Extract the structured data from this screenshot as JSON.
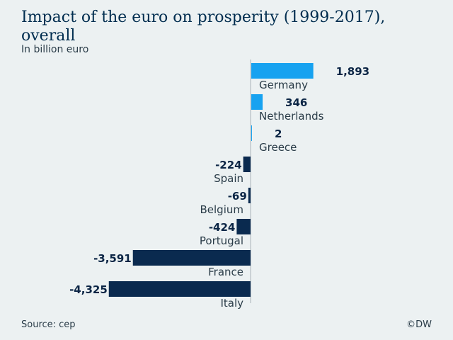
{
  "title": "Impact of the euro on prosperity (1999-2017), overall",
  "subtitle": "In billion euro",
  "source": "Source: cep",
  "logo": "©DW",
  "colors": {
    "positive": "#17a2f0",
    "negative": "#0a2a4f",
    "axis": "#aab4b8"
  },
  "chart_data": {
    "type": "bar",
    "orientation": "horizontal",
    "categories": [
      "Germany",
      "Netherlands",
      "Greece",
      "Spain",
      "Belgium",
      "Portugal",
      "France",
      "Italy"
    ],
    "values": [
      1893,
      346,
      2,
      -224,
      -69,
      -424,
      -3591,
      -4325
    ],
    "value_labels": [
      "1,893",
      "346",
      "2",
      "-224",
      "-69",
      "-424",
      "-3,591",
      "-4,325"
    ],
    "title": "Impact of the euro on prosperity (1999-2017), overall",
    "xlabel": "",
    "ylabel": "",
    "grid": false,
    "legend": "none"
  }
}
